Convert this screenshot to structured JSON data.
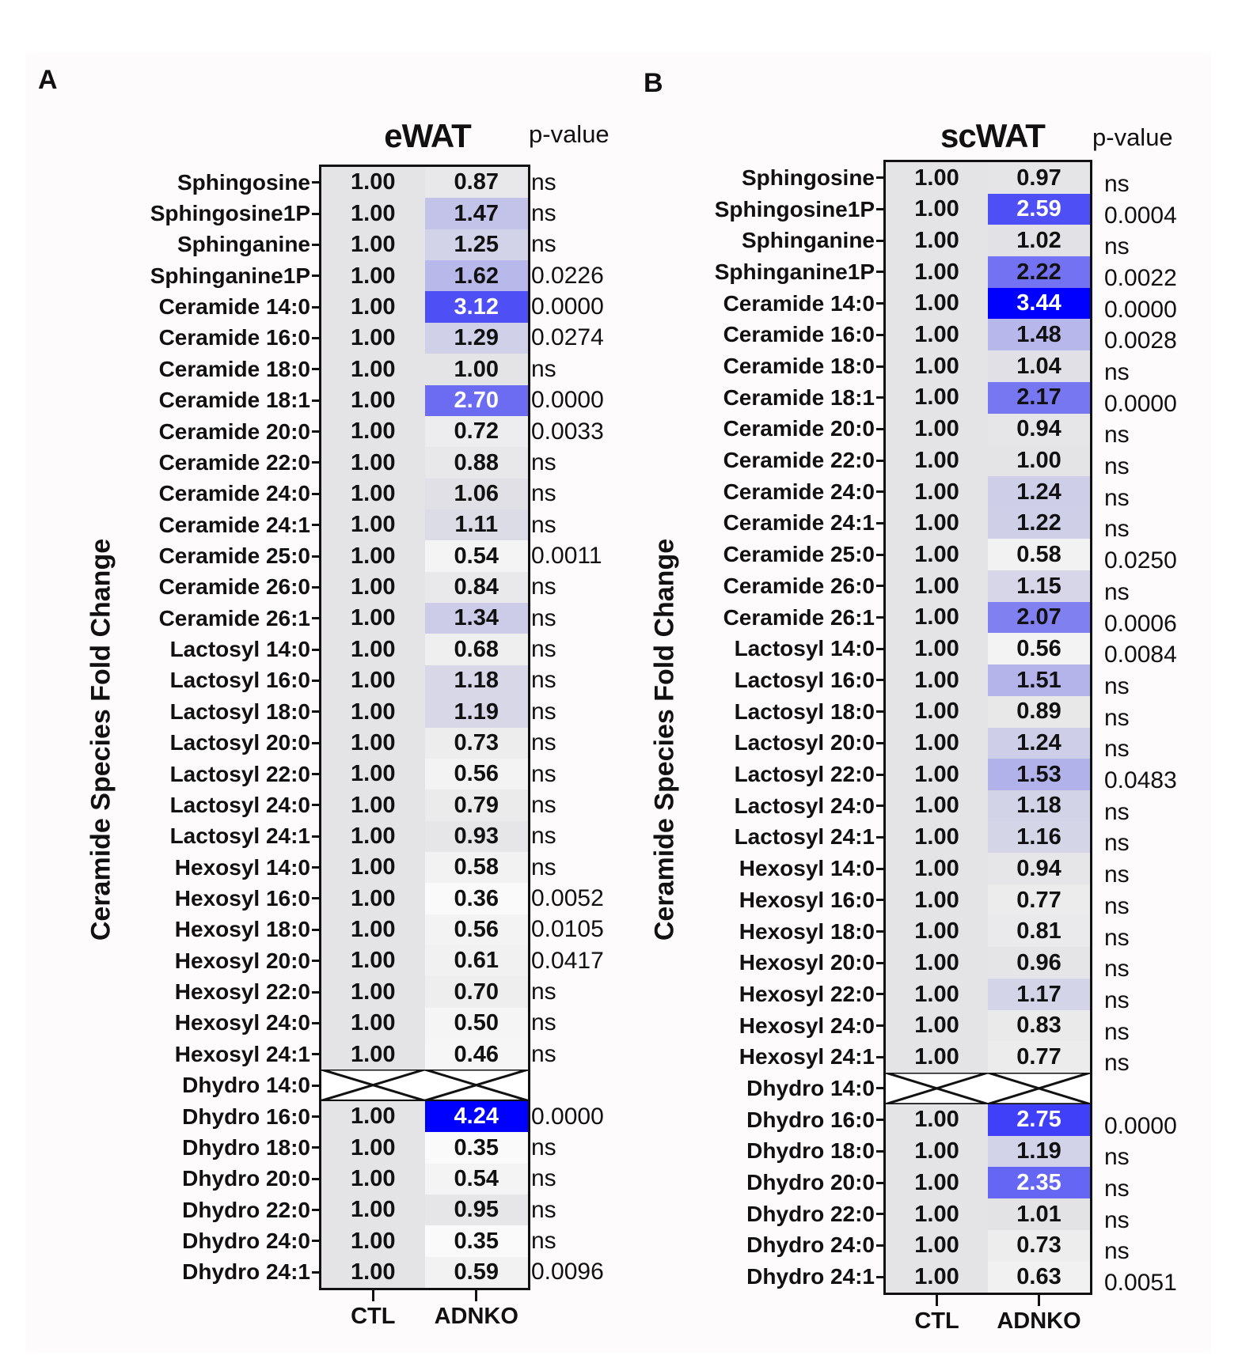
{
  "chart_data": [
    {
      "type": "heatmap",
      "panel": "A",
      "title": "eWAT",
      "ylabel": "Ceramide Species Fold Change",
      "pvalue_header": "p-value",
      "columns": [
        "CTL",
        "ADNKO"
      ],
      "color_scale": {
        "low": "#fafafa",
        "mid": "#e4e4e6",
        "high": "#0000ff"
      },
      "rows": [
        {
          "label": "Sphingosine",
          "ctl": "1.00",
          "adnko": "0.87",
          "p": "ns"
        },
        {
          "label": "Sphingosine1P",
          "ctl": "1.00",
          "adnko": "1.47",
          "p": "ns"
        },
        {
          "label": "Sphinganine",
          "ctl": "1.00",
          "adnko": "1.25",
          "p": "ns"
        },
        {
          "label": "Sphinganine1P",
          "ctl": "1.00",
          "adnko": "1.62",
          "p": "0.0226"
        },
        {
          "label": "Ceramide 14:0",
          "ctl": "1.00",
          "adnko": "3.12",
          "p": "0.0000"
        },
        {
          "label": "Ceramide 16:0",
          "ctl": "1.00",
          "adnko": "1.29",
          "p": "0.0274"
        },
        {
          "label": "Ceramide 18:0",
          "ctl": "1.00",
          "adnko": "1.00",
          "p": "ns"
        },
        {
          "label": "Ceramide 18:1",
          "ctl": "1.00",
          "adnko": "2.70",
          "p": "0.0000"
        },
        {
          "label": "Ceramide 20:0",
          "ctl": "1.00",
          "adnko": "0.72",
          "p": "0.0033"
        },
        {
          "label": "Ceramide 22:0",
          "ctl": "1.00",
          "adnko": "0.88",
          "p": "ns"
        },
        {
          "label": "Ceramide 24:0",
          "ctl": "1.00",
          "adnko": "1.06",
          "p": "ns"
        },
        {
          "label": "Ceramide 24:1",
          "ctl": "1.00",
          "adnko": "1.11",
          "p": "ns"
        },
        {
          "label": "Ceramide 25:0",
          "ctl": "1.00",
          "adnko": "0.54",
          "p": "0.0011"
        },
        {
          "label": "Ceramide 26:0",
          "ctl": "1.00",
          "adnko": "0.84",
          "p": "ns"
        },
        {
          "label": "Ceramide 26:1",
          "ctl": "1.00",
          "adnko": "1.34",
          "p": "ns"
        },
        {
          "label": "Lactosyl 14:0",
          "ctl": "1.00",
          "adnko": "0.68",
          "p": "ns"
        },
        {
          "label": "Lactosyl 16:0",
          "ctl": "1.00",
          "adnko": "1.18",
          "p": "ns"
        },
        {
          "label": "Lactosyl 18:0",
          "ctl": "1.00",
          "adnko": "1.19",
          "p": "ns"
        },
        {
          "label": "Lactosyl 20:0",
          "ctl": "1.00",
          "adnko": "0.73",
          "p": "ns"
        },
        {
          "label": "Lactosyl 22:0",
          "ctl": "1.00",
          "adnko": "0.56",
          "p": "ns"
        },
        {
          "label": "Lactosyl 24:0",
          "ctl": "1.00",
          "adnko": "0.79",
          "p": "ns"
        },
        {
          "label": "Lactosyl 24:1",
          "ctl": "1.00",
          "adnko": "0.93",
          "p": "ns"
        },
        {
          "label": "Hexosyl 14:0",
          "ctl": "1.00",
          "adnko": "0.58",
          "p": "ns"
        },
        {
          "label": "Hexosyl 16:0",
          "ctl": "1.00",
          "adnko": "0.36",
          "p": "0.0052"
        },
        {
          "label": "Hexosyl 18:0",
          "ctl": "1.00",
          "adnko": "0.56",
          "p": "0.0105"
        },
        {
          "label": "Hexosyl 20:0",
          "ctl": "1.00",
          "adnko": "0.61",
          "p": "0.0417"
        },
        {
          "label": "Hexosyl 22:0",
          "ctl": "1.00",
          "adnko": "0.70",
          "p": "ns"
        },
        {
          "label": "Hexosyl 24:0",
          "ctl": "1.00",
          "adnko": "0.50",
          "p": "ns"
        },
        {
          "label": "Hexosyl 24:1",
          "ctl": "1.00",
          "adnko": "0.46",
          "p": "ns"
        },
        {
          "label": "Dhydro 14:0",
          "ctl": null,
          "adnko": null,
          "p": ""
        },
        {
          "label": "Dhydro 16:0",
          "ctl": "1.00",
          "adnko": "4.24",
          "p": "0.0000"
        },
        {
          "label": "Dhydro 18:0",
          "ctl": "1.00",
          "adnko": "0.35",
          "p": "ns"
        },
        {
          "label": "Dhydro 20:0",
          "ctl": "1.00",
          "adnko": "0.54",
          "p": "ns"
        },
        {
          "label": "Dhydro 22:0",
          "ctl": "1.00",
          "adnko": "0.95",
          "p": "ns"
        },
        {
          "label": "Dhydro 24:0",
          "ctl": "1.00",
          "adnko": "0.35",
          "p": "ns"
        },
        {
          "label": "Dhydro 24:1",
          "ctl": "1.00",
          "adnko": "0.59",
          "p": "0.0096"
        }
      ]
    },
    {
      "type": "heatmap",
      "panel": "B",
      "title": "scWAT",
      "ylabel": "Ceramide Species Fold Change",
      "pvalue_header": "p-value",
      "columns": [
        "CTL",
        "ADNKO"
      ],
      "color_scale": {
        "low": "#fafafa",
        "mid": "#e4e4e6",
        "high": "#0000ff"
      },
      "rows": [
        {
          "label": "Sphingosine",
          "ctl": "1.00",
          "adnko": "0.97",
          "p": "ns"
        },
        {
          "label": "Sphingosine1P",
          "ctl": "1.00",
          "adnko": "2.59",
          "p": "0.0004"
        },
        {
          "label": "Sphinganine",
          "ctl": "1.00",
          "adnko": "1.02",
          "p": "ns"
        },
        {
          "label": "Sphinganine1P",
          "ctl": "1.00",
          "adnko": "2.22",
          "p": "0.0022"
        },
        {
          "label": "Ceramide 14:0",
          "ctl": "1.00",
          "adnko": "3.44",
          "p": "0.0000"
        },
        {
          "label": "Ceramide 16:0",
          "ctl": "1.00",
          "adnko": "1.48",
          "p": "0.0028"
        },
        {
          "label": "Ceramide 18:0",
          "ctl": "1.00",
          "adnko": "1.04",
          "p": "ns"
        },
        {
          "label": "Ceramide 18:1",
          "ctl": "1.00",
          "adnko": "2.17",
          "p": "0.0000"
        },
        {
          "label": "Ceramide 20:0",
          "ctl": "1.00",
          "adnko": "0.94",
          "p": "ns"
        },
        {
          "label": "Ceramide 22:0",
          "ctl": "1.00",
          "adnko": "1.00",
          "p": "ns"
        },
        {
          "label": "Ceramide 24:0",
          "ctl": "1.00",
          "adnko": "1.24",
          "p": "ns"
        },
        {
          "label": "Ceramide 24:1",
          "ctl": "1.00",
          "adnko": "1.22",
          "p": "ns"
        },
        {
          "label": "Ceramide 25:0",
          "ctl": "1.00",
          "adnko": "0.58",
          "p": "0.0250"
        },
        {
          "label": "Ceramide 26:0",
          "ctl": "1.00",
          "adnko": "1.15",
          "p": "ns"
        },
        {
          "label": "Ceramide 26:1",
          "ctl": "1.00",
          "adnko": "2.07",
          "p": "0.0006"
        },
        {
          "label": "Lactosyl 14:0",
          "ctl": "1.00",
          "adnko": "0.56",
          "p": "0.0084"
        },
        {
          "label": "Lactosyl 16:0",
          "ctl": "1.00",
          "adnko": "1.51",
          "p": "ns"
        },
        {
          "label": "Lactosyl 18:0",
          "ctl": "1.00",
          "adnko": "0.89",
          "p": "ns"
        },
        {
          "label": "Lactosyl 20:0",
          "ctl": "1.00",
          "adnko": "1.24",
          "p": "ns"
        },
        {
          "label": "Lactosyl 22:0",
          "ctl": "1.00",
          "adnko": "1.53",
          "p": "0.0483"
        },
        {
          "label": "Lactosyl 24:0",
          "ctl": "1.00",
          "adnko": "1.18",
          "p": "ns"
        },
        {
          "label": "Lactosyl 24:1",
          "ctl": "1.00",
          "adnko": "1.16",
          "p": "ns"
        },
        {
          "label": "Hexosyl 14:0",
          "ctl": "1.00",
          "adnko": "0.94",
          "p": "ns"
        },
        {
          "label": "Hexosyl 16:0",
          "ctl": "1.00",
          "adnko": "0.77",
          "p": "ns"
        },
        {
          "label": "Hexosyl 18:0",
          "ctl": "1.00",
          "adnko": "0.81",
          "p": "ns"
        },
        {
          "label": "Hexosyl 20:0",
          "ctl": "1.00",
          "adnko": "0.96",
          "p": "ns"
        },
        {
          "label": "Hexosyl 22:0",
          "ctl": "1.00",
          "adnko": "1.17",
          "p": "ns"
        },
        {
          "label": "Hexosyl 24:0",
          "ctl": "1.00",
          "adnko": "0.83",
          "p": "ns"
        },
        {
          "label": "Hexosyl 24:1",
          "ctl": "1.00",
          "adnko": "0.77",
          "p": "ns"
        },
        {
          "label": "Dhydro 14:0",
          "ctl": null,
          "adnko": null,
          "p": ""
        },
        {
          "label": "Dhydro 16:0",
          "ctl": "1.00",
          "adnko": "2.75",
          "p": "0.0000"
        },
        {
          "label": "Dhydro 18:0",
          "ctl": "1.00",
          "adnko": "1.19",
          "p": "ns"
        },
        {
          "label": "Dhydro 20:0",
          "ctl": "1.00",
          "adnko": "2.35",
          "p": "ns"
        },
        {
          "label": "Dhydro 22:0",
          "ctl": "1.00",
          "adnko": "1.01",
          "p": "ns"
        },
        {
          "label": "Dhydro 24:0",
          "ctl": "1.00",
          "adnko": "0.73",
          "p": "ns"
        },
        {
          "label": "Dhydro 24:1",
          "ctl": "1.00",
          "adnko": "0.63",
          "p": "0.0051"
        }
      ]
    }
  ]
}
